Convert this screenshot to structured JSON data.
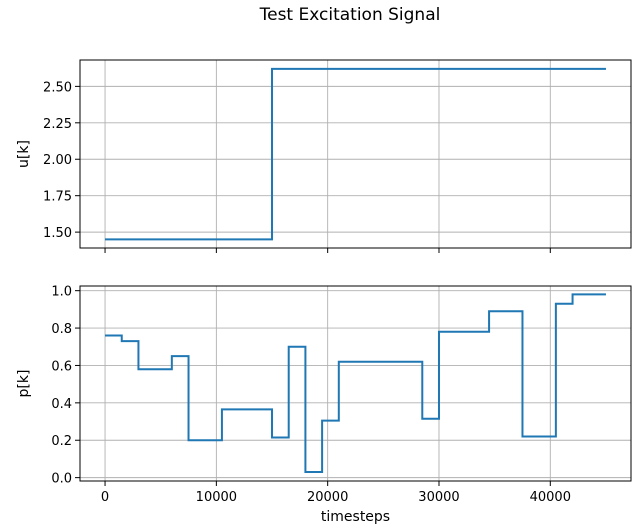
{
  "chart_data": [
    {
      "type": "line",
      "title": "Test Excitation Signal",
      "xlabel": "",
      "ylabel": "u[k]",
      "xlim": [
        -2250,
        47250
      ],
      "ylim": [
        1.391,
        2.681
      ],
      "xticks": [
        0,
        10000,
        20000,
        30000,
        40000
      ],
      "show_xticklabels": false,
      "yticks": [
        1.5,
        1.75,
        2.0,
        2.25,
        2.5
      ],
      "yticklabels": [
        "1.50",
        "1.75",
        "2.00",
        "2.25",
        "2.50"
      ],
      "grid": true,
      "color": "#1f77b4",
      "step": "post",
      "series": [
        {
          "x": [
            0,
            15000,
            45000
          ],
          "y": [
            1.45,
            2.62,
            2.62
          ]
        }
      ]
    },
    {
      "type": "line",
      "title": "",
      "xlabel": "timesteps",
      "ylabel": "p[k]",
      "xlim": [
        -2250,
        47250
      ],
      "ylim": [
        -0.018,
        1.025
      ],
      "xticks": [
        0,
        10000,
        20000,
        30000,
        40000
      ],
      "xticklabels": [
        "0",
        "10000",
        "20000",
        "30000",
        "40000"
      ],
      "yticks": [
        0.0,
        0.2,
        0.4,
        0.6,
        0.8,
        1.0
      ],
      "yticklabels": [
        "0.0",
        "0.2",
        "0.4",
        "0.6",
        "0.8",
        "1.0"
      ],
      "grid": true,
      "color": "#1f77b4",
      "step": "post",
      "series": [
        {
          "x": [
            0,
            1500,
            3000,
            6000,
            7500,
            10500,
            15000,
            16500,
            18000,
            19500,
            21000,
            28500,
            30000,
            34500,
            37500,
            40500,
            42000,
            45000
          ],
          "y": [
            0.76,
            0.73,
            0.58,
            0.65,
            0.2,
            0.365,
            0.215,
            0.7,
            0.03,
            0.305,
            0.62,
            0.315,
            0.78,
            0.89,
            0.22,
            0.93,
            0.98,
            0.98
          ]
        }
      ]
    }
  ]
}
